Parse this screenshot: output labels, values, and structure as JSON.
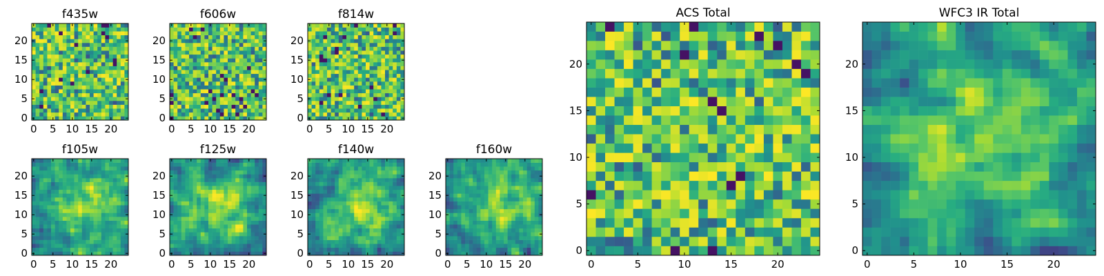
{
  "chart_data": [
    {
      "type": "heatmap",
      "title": "f435w",
      "xticks": [
        "0",
        "5",
        "10",
        "15",
        "20"
      ],
      "yticks": [
        "0",
        "5",
        "10",
        "15",
        "20"
      ],
      "xlim": [
        0,
        25
      ],
      "ylim": [
        0,
        25
      ],
      "grid_size": 25,
      "colormap": "viridis",
      "pattern": {
        "kind": "noise",
        "cell": 1,
        "seed": 11
      }
    },
    {
      "type": "heatmap",
      "title": "f606w",
      "xticks": [
        "0",
        "5",
        "10",
        "15",
        "20"
      ],
      "yticks": [
        "0",
        "5",
        "10",
        "15",
        "20"
      ],
      "xlim": [
        0,
        25
      ],
      "ylim": [
        0,
        25
      ],
      "grid_size": 25,
      "colormap": "viridis",
      "pattern": {
        "kind": "noise",
        "cell": 1,
        "seed": 23
      }
    },
    {
      "type": "heatmap",
      "title": "f814w",
      "xticks": [
        "0",
        "5",
        "10",
        "15",
        "20"
      ],
      "yticks": [
        "0",
        "5",
        "10",
        "15",
        "20"
      ],
      "xlim": [
        0,
        25
      ],
      "ylim": [
        0,
        25
      ],
      "grid_size": 25,
      "colormap": "viridis",
      "pattern": {
        "kind": "noise",
        "cell": 1,
        "seed": 37
      }
    },
    {
      "type": "heatmap",
      "title": "f105w",
      "xticks": [
        "0",
        "5",
        "10",
        "15",
        "20"
      ],
      "yticks": [
        "0",
        "5",
        "10",
        "15",
        "20"
      ],
      "xlim": [
        0,
        25
      ],
      "ylim": [
        0,
        25
      ],
      "grid_size": 25,
      "colormap": "viridis",
      "pattern": {
        "kind": "smooth",
        "cell": 1,
        "seed": 41
      }
    },
    {
      "type": "heatmap",
      "title": "f125w",
      "xticks": [
        "0",
        "5",
        "10",
        "15",
        "20"
      ],
      "yticks": [
        "0",
        "5",
        "10",
        "15",
        "20"
      ],
      "xlim": [
        0,
        25
      ],
      "ylim": [
        0,
        25
      ],
      "grid_size": 25,
      "colormap": "viridis",
      "pattern": {
        "kind": "smooth",
        "cell": 1,
        "seed": 53
      }
    },
    {
      "type": "heatmap",
      "title": "f140w",
      "xticks": [
        "0",
        "5",
        "10",
        "15",
        "20"
      ],
      "yticks": [
        "0",
        "5",
        "10",
        "15",
        "20"
      ],
      "xlim": [
        0,
        25
      ],
      "ylim": [
        0,
        25
      ],
      "grid_size": 25,
      "colormap": "viridis",
      "pattern": {
        "kind": "smooth",
        "cell": 1,
        "seed": 67
      }
    },
    {
      "type": "heatmap",
      "title": "f160w",
      "xticks": [
        "0",
        "5",
        "10",
        "15",
        "20"
      ],
      "yticks": [
        "0",
        "5",
        "10",
        "15",
        "20"
      ],
      "xlim": [
        0,
        25
      ],
      "ylim": [
        0,
        25
      ],
      "grid_size": 25,
      "colormap": "viridis",
      "pattern": {
        "kind": "smooth",
        "cell": 1,
        "seed": 79
      }
    },
    {
      "type": "heatmap",
      "title": "ACS Total",
      "xticks": [
        "0",
        "5",
        "10",
        "15",
        "20"
      ],
      "yticks": [
        "0",
        "5",
        "10",
        "15",
        "20"
      ],
      "xlim": [
        0,
        25
      ],
      "ylim": [
        0,
        25
      ],
      "grid_size": 25,
      "colormap": "viridis",
      "pattern": {
        "kind": "noise",
        "cell": 1,
        "seed": 97
      }
    },
    {
      "type": "heatmap",
      "title": "WFC3 IR Total",
      "xticks": [
        "0",
        "5",
        "10",
        "15",
        "20"
      ],
      "yticks": [
        "0",
        "5",
        "10",
        "15",
        "20"
      ],
      "xlim": [
        0,
        25
      ],
      "ylim": [
        0,
        25
      ],
      "grid_size": 25,
      "colormap": "viridis",
      "pattern": {
        "kind": "smooth",
        "cell": 1,
        "seed": 101
      }
    }
  ]
}
